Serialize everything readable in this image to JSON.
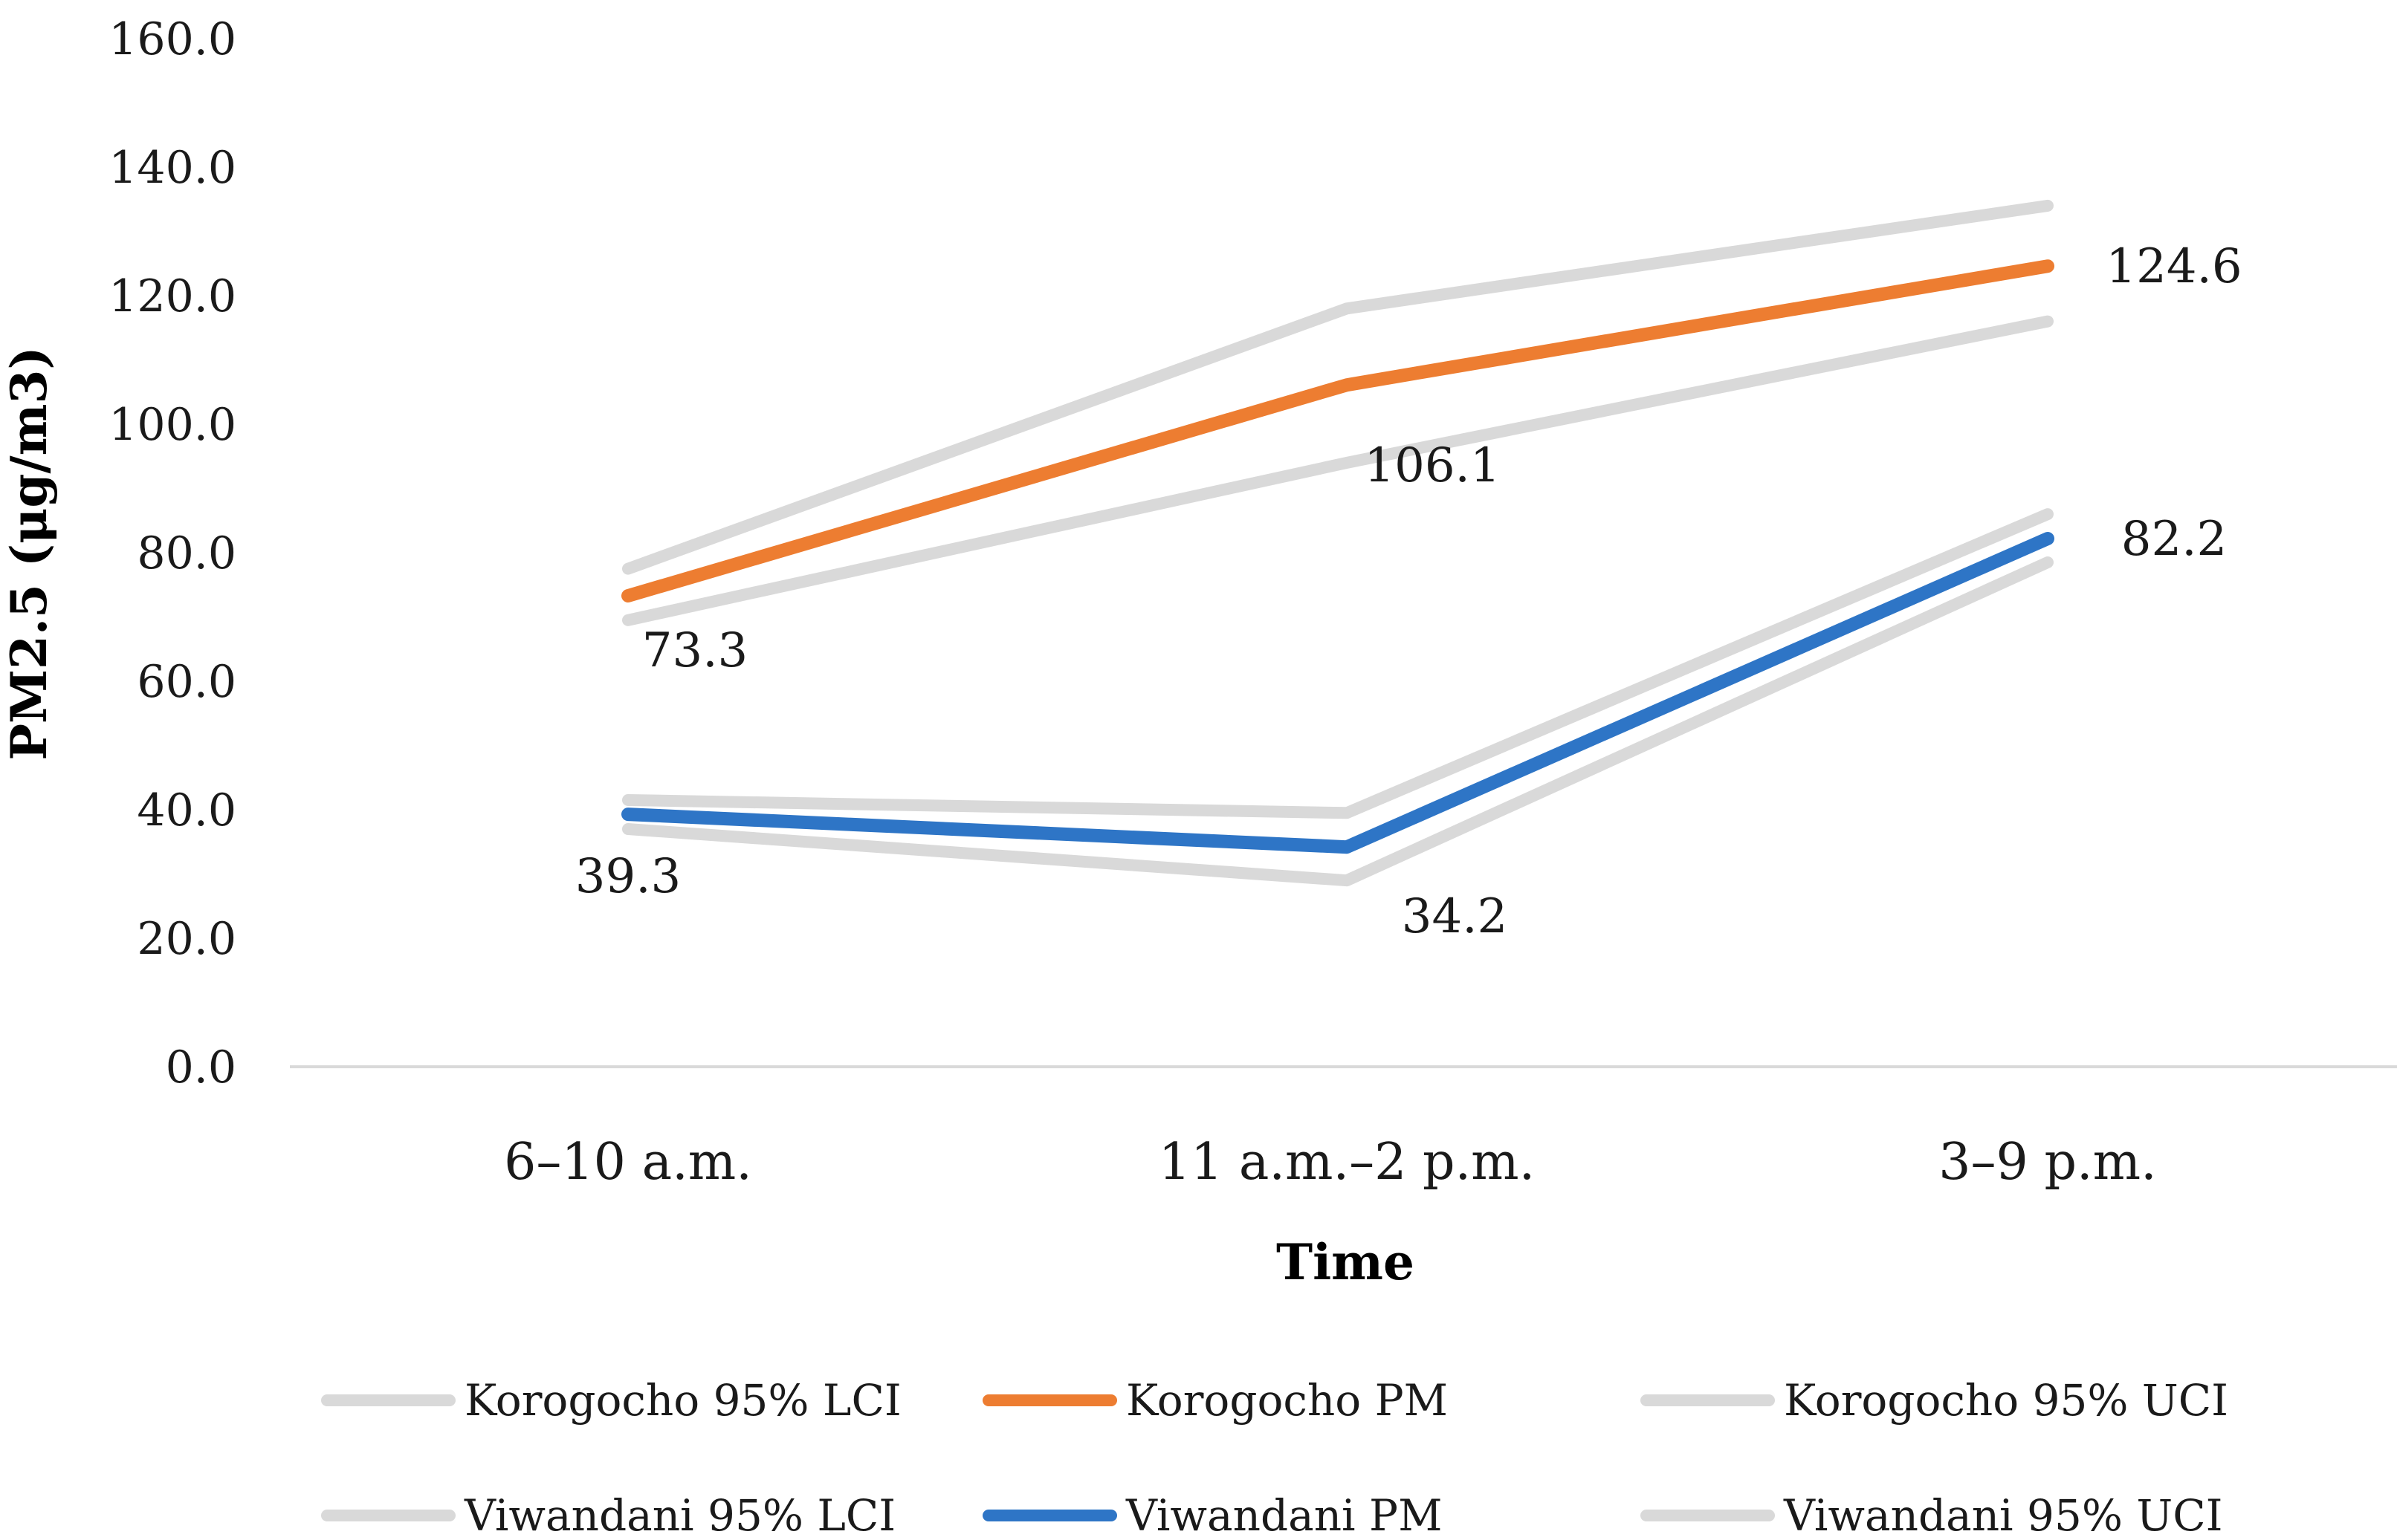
{
  "chart_data": {
    "type": "line",
    "title": "",
    "xlabel": "Time",
    "ylabel": "PM2.5 (μg/m3)",
    "ylim": [
      0,
      160
    ],
    "yticks": [
      "0.0",
      "20.0",
      "40.0",
      "60.0",
      "80.0",
      "100.0",
      "120.0",
      "140.0",
      "160.0"
    ],
    "categories": [
      "6–10 a.m.",
      "11 a.m.–2 p.m.",
      "3–9 p.m."
    ],
    "grid": false,
    "legend_position": "bottom",
    "series": [
      {
        "name": "Korogocho 95% LCI",
        "values": [
          69.5,
          94.0,
          116.0
        ],
        "color": "#d9d9d9",
        "labeled": false
      },
      {
        "name": "Korogocho PM",
        "values": [
          73.3,
          106.1,
          124.6
        ],
        "color": "#ed7d31",
        "labeled": true
      },
      {
        "name": "Korogocho 95% UCI",
        "values": [
          77.5,
          118.0,
          134.0
        ],
        "color": "#d9d9d9",
        "labeled": false
      },
      {
        "name": "Viwandani 95% LCI",
        "values": [
          37.0,
          29.0,
          78.5
        ],
        "color": "#d9d9d9",
        "labeled": false
      },
      {
        "name": "Viwandani PM",
        "values": [
          39.3,
          34.2,
          82.2
        ],
        "color": "#2e75c6",
        "labeled": true
      },
      {
        "name": "Viwandani 95% UCI",
        "values": [
          41.5,
          39.5,
          86.0
        ],
        "color": "#d9d9d9",
        "labeled": false
      }
    ],
    "data_labels": {
      "Korogocho PM": [
        "73.3",
        "106.1",
        "124.6"
      ],
      "Viwandani PM": [
        "39.3",
        "34.2",
        "82.2"
      ]
    }
  }
}
